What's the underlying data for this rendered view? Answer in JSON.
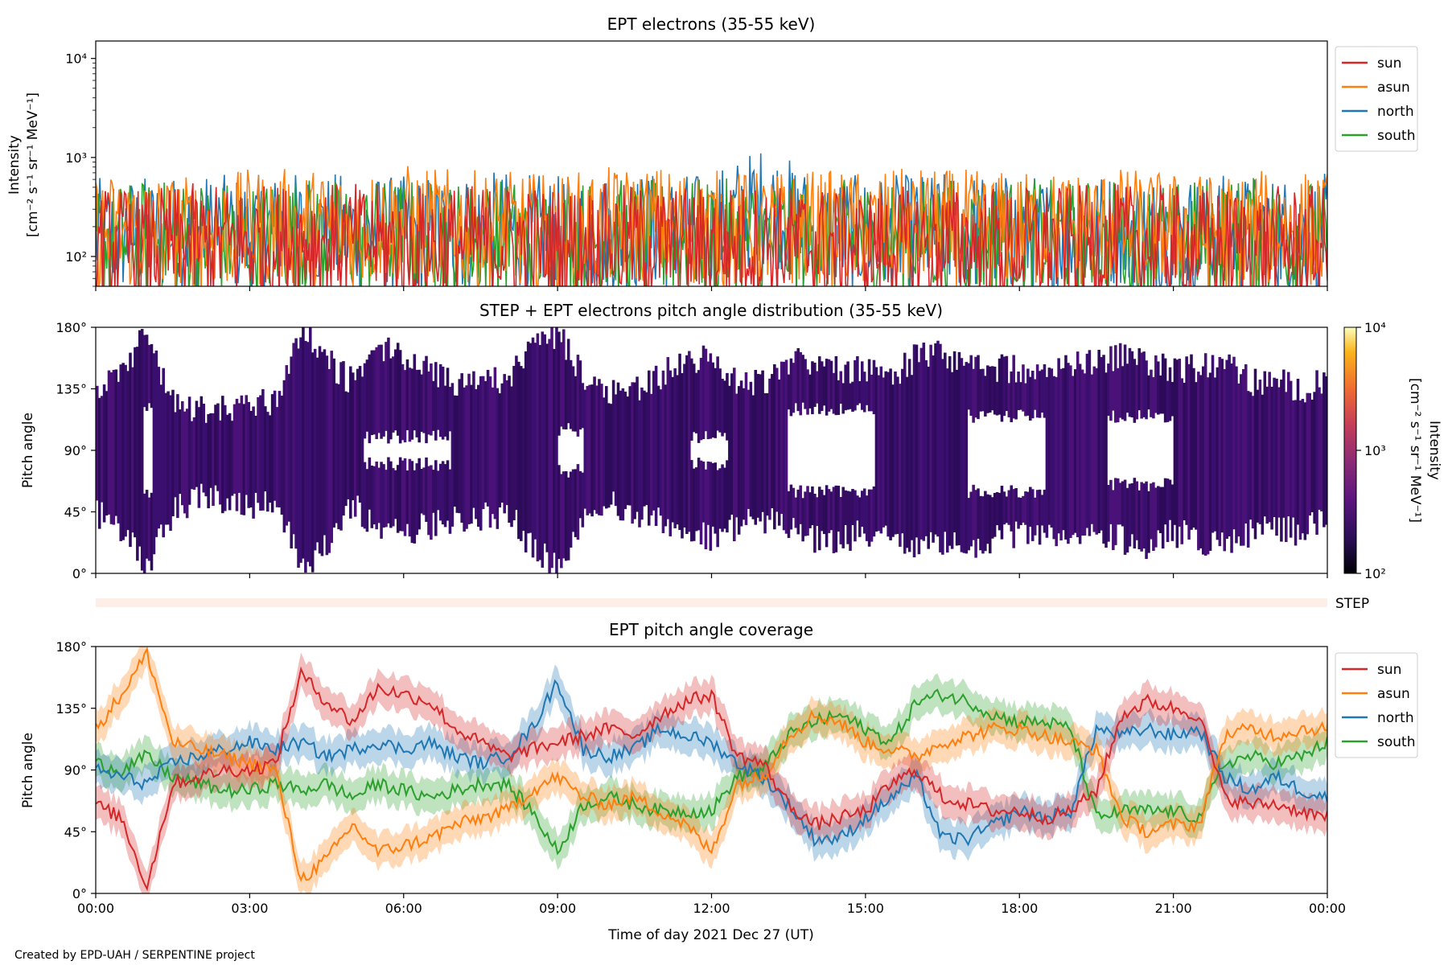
{
  "figure": {
    "credit": "Created by EPD-UAH / SERPENTINE project",
    "xlabel": "Time of day 2021 Dec 27 (UT)",
    "x_ticks": [
      "00:00",
      "03:00",
      "06:00",
      "09:00",
      "12:00",
      "15:00",
      "18:00",
      "21:00",
      "00:00"
    ]
  },
  "panel1": {
    "title": "EPT electrons (35-55 keV)",
    "ylabel_line1": "Intensity",
    "ylabel_line2": "[cm⁻² s⁻¹ sr⁻¹ MeV⁻¹]",
    "y_ticks": [
      "10²",
      "10³",
      "10⁴"
    ]
  },
  "panel2": {
    "title": "STEP + EPT electrons pitch angle distribution (35-55 keV)",
    "ylabel": "Pitch angle",
    "y_ticks": [
      "0°",
      "45°",
      "90°",
      "135°",
      "180°"
    ],
    "colorbar_label": "Intensity",
    "colorbar_units": "[cm⁻² s⁻¹ sr⁻¹ MeV⁻¹]",
    "colorbar_ticks": [
      "10²",
      "10³",
      "10⁴"
    ]
  },
  "step_bar": {
    "label": "STEP"
  },
  "panel3": {
    "title": "EPT pitch angle coverage",
    "ylabel": "Pitch angle",
    "y_ticks": [
      "0°",
      "45°",
      "90°",
      "135°",
      "180°"
    ]
  },
  "legend": {
    "entries": [
      "sun",
      "asun",
      "north",
      "south"
    ]
  },
  "colors": {
    "sun": "#d62728",
    "asun": "#ff7f0e",
    "north": "#1f77b4",
    "south": "#2ca02c",
    "pad_fill": "#3b0f6f"
  },
  "chart_data": [
    {
      "type": "line",
      "title": "EPT electrons (35-55 keV)",
      "xlabel": "",
      "ylabel": "Intensity [cm⁻² s⁻¹ sr⁻¹ MeV⁻¹]",
      "y_scale": "log",
      "ylim": [
        50,
        15000
      ],
      "xlim_hours": [
        0,
        24
      ],
      "x": [
        0,
        1,
        2,
        3,
        4,
        5,
        6,
        7,
        8,
        9,
        10,
        11,
        12,
        13,
        14,
        15,
        16,
        17,
        18,
        19,
        20,
        21,
        22,
        23,
        24
      ],
      "series": [
        {
          "name": "sun",
          "values": [
            150,
            140,
            160,
            150,
            170,
            160,
            150,
            155,
            160,
            150,
            160,
            150,
            155,
            160,
            150,
            145,
            150,
            155,
            150,
            150,
            160,
            150,
            145,
            150,
            150
          ]
        },
        {
          "name": "asun",
          "values": [
            200,
            210,
            190,
            220,
            230,
            210,
            250,
            220,
            210,
            200,
            230,
            240,
            220,
            210,
            220,
            210,
            230,
            220,
            210,
            220,
            230,
            210,
            200,
            220,
            210
          ]
        },
        {
          "name": "north",
          "values": [
            180,
            190,
            200,
            190,
            210,
            200,
            190,
            200,
            210,
            190,
            200,
            210,
            200,
            380,
            200,
            190,
            200,
            210,
            190,
            200,
            210,
            190,
            200,
            190,
            200
          ]
        },
        {
          "name": "south",
          "values": [
            160,
            170,
            180,
            170,
            190,
            170,
            180,
            170,
            180,
            170,
            180,
            170,
            180,
            170,
            180,
            170,
            190,
            170,
            180,
            170,
            180,
            170,
            180,
            190,
            170
          ]
        }
      ],
      "grid": false,
      "legend": "upper right, outside"
    },
    {
      "type": "heatmap",
      "title": "STEP + EPT electrons pitch angle distribution (35-55 keV)",
      "ylabel": "Pitch angle",
      "ylim": [
        0,
        180
      ],
      "xlim_hours": [
        0,
        24
      ],
      "colorbar": {
        "label": "Intensity [cm⁻² s⁻¹ sr⁻¹ MeV⁻¹]",
        "scale": "log",
        "range": [
          100,
          10000
        ]
      },
      "x": [
        0,
        0.5,
        1,
        1.5,
        2,
        2.5,
        3,
        3.5,
        4,
        4.5,
        5,
        5.5,
        6,
        6.5,
        7,
        7.5,
        8,
        8.5,
        9,
        9.5,
        10,
        10.5,
        11,
        11.5,
        12,
        12.5,
        13,
        13.5,
        14,
        14.5,
        15,
        15.5,
        16,
        16.5,
        17,
        17.5,
        18,
        18.5,
        19,
        19.5,
        20,
        20.5,
        21,
        21.5,
        22,
        22.5,
        23,
        23.5,
        24
      ],
      "bottom_edge_deg": [
        45,
        30,
        5,
        45,
        55,
        55,
        50,
        55,
        5,
        20,
        50,
        30,
        30,
        35,
        40,
        40,
        45,
        20,
        5,
        40,
        55,
        40,
        40,
        30,
        25,
        35,
        40,
        35,
        25,
        25,
        30,
        25,
        20,
        20,
        20,
        25,
        30,
        30,
        30,
        25,
        25,
        20,
        30,
        25,
        20,
        30,
        35,
        30,
        40
      ],
      "top_edge_deg": [
        130,
        150,
        175,
        125,
        120,
        120,
        125,
        125,
        180,
        155,
        140,
        165,
        160,
        150,
        140,
        145,
        140,
        165,
        175,
        145,
        135,
        135,
        145,
        155,
        160,
        140,
        140,
        155,
        155,
        150,
        150,
        140,
        160,
        160,
        155,
        150,
        150,
        145,
        150,
        155,
        160,
        155,
        150,
        150,
        155,
        140,
        140,
        135,
        140
      ],
      "empty_center_deg": [
        {
          "x": [
            0.9,
            1.1
          ],
          "y": [
            60,
            120
          ]
        },
        {
          "x": [
            5.2,
            6.9
          ],
          "y": [
            80,
            100
          ]
        },
        {
          "x": [
            9.0,
            9.5
          ],
          "y": [
            75,
            105
          ]
        },
        {
          "x": [
            11.6,
            12.3
          ],
          "y": [
            80,
            100
          ]
        },
        {
          "x": [
            13.5,
            15.2
          ],
          "y": [
            60,
            120
          ]
        },
        {
          "x": [
            17.0,
            18.5
          ],
          "y": [
            60,
            115
          ]
        },
        {
          "x": [
            19.7,
            21.0
          ],
          "y": [
            65,
            115
          ]
        }
      ]
    },
    {
      "type": "line",
      "title": "EPT pitch angle coverage",
      "xlabel": "Time of day 2021 Dec 27 (UT)",
      "ylabel": "Pitch angle",
      "ylim": [
        0,
        180
      ],
      "xlim_hours": [
        0,
        24
      ],
      "x": [
        0,
        0.5,
        1,
        1.5,
        2,
        2.5,
        3,
        3.5,
        4,
        4.5,
        5,
        5.5,
        6,
        6.5,
        7,
        7.5,
        8,
        8.5,
        9,
        9.5,
        10,
        10.5,
        11,
        11.5,
        12,
        12.5,
        13,
        13.5,
        14,
        14.5,
        15,
        15.5,
        16,
        16.5,
        17,
        17.5,
        18,
        18.5,
        19,
        19.5,
        20,
        20.5,
        21,
        21.5,
        22,
        22.5,
        23,
        23.5,
        24
      ],
      "series": [
        {
          "name": "sun",
          "values": [
            65,
            55,
            5,
            80,
            85,
            90,
            90,
            95,
            160,
            140,
            125,
            150,
            145,
            140,
            120,
            110,
            100,
            105,
            110,
            115,
            120,
            115,
            130,
            140,
            145,
            100,
            95,
            65,
            50,
            55,
            60,
            80,
            90,
            70,
            65,
            60,
            60,
            55,
            60,
            75,
            130,
            140,
            135,
            130,
            70,
            65,
            65,
            60,
            55
          ]
        },
        {
          "name": "asun",
          "values": [
            120,
            145,
            175,
            110,
            105,
            100,
            95,
            90,
            10,
            25,
            50,
            30,
            35,
            40,
            50,
            55,
            60,
            75,
            85,
            70,
            65,
            70,
            60,
            50,
            30,
            80,
            85,
            115,
            130,
            125,
            110,
            105,
            100,
            110,
            115,
            120,
            120,
            115,
            110,
            105,
            55,
            45,
            50,
            50,
            115,
            120,
            115,
            120,
            120
          ]
        },
        {
          "name": "north",
          "values": [
            90,
            85,
            80,
            95,
            100,
            105,
            110,
            105,
            110,
            100,
            105,
            110,
            105,
            110,
            100,
            95,
            100,
            120,
            155,
            105,
            100,
            105,
            120,
            115,
            110,
            95,
            85,
            65,
            40,
            40,
            55,
            70,
            85,
            40,
            40,
            50,
            60,
            55,
            60,
            120,
            115,
            120,
            115,
            120,
            85,
            75,
            85,
            75,
            70
          ]
        },
        {
          "name": "south",
          "values": [
            95,
            90,
            100,
            85,
            80,
            75,
            75,
            80,
            75,
            80,
            70,
            80,
            75,
            70,
            75,
            80,
            80,
            60,
            30,
            65,
            70,
            65,
            60,
            60,
            60,
            85,
            90,
            115,
            125,
            130,
            120,
            110,
            140,
            145,
            140,
            130,
            125,
            125,
            120,
            55,
            60,
            60,
            60,
            55,
            95,
            100,
            95,
            100,
            110
          ]
        }
      ],
      "band_halfwidth_deg": 12,
      "grid": false,
      "legend": "upper right, outside"
    }
  ]
}
